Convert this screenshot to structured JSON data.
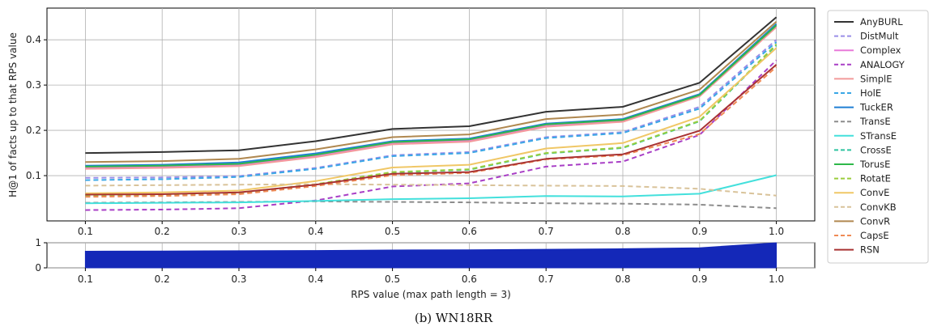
{
  "chart_data": [
    {
      "type": "line",
      "title": "",
      "xlabel": "",
      "ylabel": "H@1 of facts up to that RPS value",
      "x": [
        0.1,
        0.2,
        0.3,
        0.4,
        0.5,
        0.6,
        0.7,
        0.8,
        0.9,
        1.0
      ],
      "xlim": [
        0.05,
        1.05
      ],
      "ylim": [
        0.0,
        0.47
      ],
      "x_ticks": [
        "0.1",
        "0.2",
        "0.3",
        "0.4",
        "0.5",
        "0.6",
        "0.7",
        "0.8",
        "0.9",
        "1.0"
      ],
      "y_ticks": [
        0.1,
        0.2,
        0.3,
        0.4
      ],
      "y_tick_labels": [
        "0.1",
        "0.2",
        "0.3",
        "0.4"
      ],
      "grid": true,
      "legend_position": "right",
      "series": [
        {
          "name": "AnyBURL",
          "color": "#333333",
          "dash": "solid",
          "values": [
            0.15,
            0.152,
            0.156,
            0.176,
            0.203,
            0.209,
            0.241,
            0.252,
            0.305,
            0.45
          ]
        },
        {
          "name": "DistMult",
          "color": "#9a8ee8",
          "dash": "dashed",
          "values": [
            0.095,
            0.096,
            0.099,
            0.117,
            0.145,
            0.152,
            0.185,
            0.196,
            0.252,
            0.4
          ]
        },
        {
          "name": "Complex",
          "color": "#e87ad9",
          "dash": "solid",
          "values": [
            0.118,
            0.12,
            0.124,
            0.144,
            0.172,
            0.178,
            0.21,
            0.22,
            0.276,
            0.43
          ]
        },
        {
          "name": "ANALOGY",
          "color": "#a93fc6",
          "dash": "dashed",
          "values": [
            0.024,
            0.025,
            0.028,
            0.045,
            0.076,
            0.083,
            0.12,
            0.131,
            0.19,
            0.355
          ]
        },
        {
          "name": "SimplE",
          "color": "#f29a9a",
          "dash": "solid",
          "values": [
            0.115,
            0.117,
            0.121,
            0.141,
            0.169,
            0.175,
            0.208,
            0.219,
            0.275,
            0.428
          ]
        },
        {
          "name": "HolE",
          "color": "#3aa7e6",
          "dash": "dashed",
          "values": [
            0.09,
            0.092,
            0.097,
            0.115,
            0.143,
            0.15,
            0.183,
            0.194,
            0.248,
            0.395
          ]
        },
        {
          "name": "TuckER",
          "color": "#1f7fd4",
          "dash": "solid",
          "values": [
            0.122,
            0.124,
            0.129,
            0.149,
            0.176,
            0.182,
            0.215,
            0.225,
            0.28,
            0.435
          ]
        },
        {
          "name": "TransE",
          "color": "#8c8c8c",
          "dash": "dashed",
          "values": [
            0.04,
            0.041,
            0.042,
            0.043,
            0.042,
            0.041,
            0.039,
            0.038,
            0.036,
            0.028
          ]
        },
        {
          "name": "STransE",
          "color": "#43e0dc",
          "dash": "solid",
          "values": [
            0.039,
            0.04,
            0.041,
            0.044,
            0.048,
            0.05,
            0.055,
            0.054,
            0.06,
            0.101
          ]
        },
        {
          "name": "CrossE",
          "color": "#2dc4a0",
          "dash": "dashed",
          "values": [
            0.055,
            0.057,
            0.061,
            0.08,
            0.107,
            0.113,
            0.149,
            0.161,
            0.22,
            0.388
          ]
        },
        {
          "name": "TorusE",
          "color": "#2eb84a",
          "dash": "solid",
          "values": [
            0.12,
            0.122,
            0.126,
            0.146,
            0.174,
            0.18,
            0.213,
            0.223,
            0.278,
            0.432
          ]
        },
        {
          "name": "RotatE",
          "color": "#9acd3c",
          "dash": "dashed",
          "values": [
            0.056,
            0.058,
            0.062,
            0.081,
            0.108,
            0.114,
            0.15,
            0.162,
            0.221,
            0.39
          ]
        },
        {
          "name": "ConvE",
          "color": "#f0c766",
          "dash": "solid",
          "values": [
            0.061,
            0.063,
            0.067,
            0.088,
            0.118,
            0.124,
            0.16,
            0.172,
            0.23,
            0.382
          ]
        },
        {
          "name": "ConvKB",
          "color": "#d9c39a",
          "dash": "dashed",
          "values": [
            0.078,
            0.079,
            0.08,
            0.081,
            0.08,
            0.079,
            0.078,
            0.077,
            0.071,
            0.056
          ]
        },
        {
          "name": "ConvR",
          "color": "#b08850",
          "dash": "solid",
          "values": [
            0.13,
            0.132,
            0.137,
            0.158,
            0.185,
            0.191,
            0.225,
            0.235,
            0.29,
            0.44
          ]
        },
        {
          "name": "CapsE",
          "color": "#f08a55",
          "dash": "dashed",
          "values": [
            0.053,
            0.055,
            0.059,
            0.077,
            0.101,
            0.106,
            0.136,
            0.145,
            0.192,
            0.34
          ]
        },
        {
          "name": "RSN",
          "color": "#a83232",
          "dash": "solid",
          "values": [
            0.058,
            0.059,
            0.063,
            0.08,
            0.104,
            0.108,
            0.137,
            0.147,
            0.199,
            0.345
          ]
        }
      ]
    },
    {
      "type": "area",
      "title": "",
      "xlabel": "RPS value (max path length = 3)",
      "ylabel": "",
      "x": [
        0.1,
        0.2,
        0.3,
        0.4,
        0.5,
        0.6,
        0.7,
        0.8,
        0.9,
        1.0
      ],
      "values": [
        0.66,
        0.67,
        0.68,
        0.69,
        0.71,
        0.72,
        0.74,
        0.76,
        0.8,
        1.0
      ],
      "color": "#1428b8",
      "xlim": [
        0.05,
        1.05
      ],
      "ylim": [
        0,
        1
      ],
      "y_ticks": [
        0,
        1
      ],
      "y_tick_labels": [
        "0",
        "1"
      ],
      "x_ticks": [
        "0.1",
        "0.2",
        "0.3",
        "0.4",
        "0.5",
        "0.6",
        "0.7",
        "0.8",
        "0.9",
        "1.0"
      ],
      "grid": true
    }
  ],
  "caption": "(b) WN18RR"
}
